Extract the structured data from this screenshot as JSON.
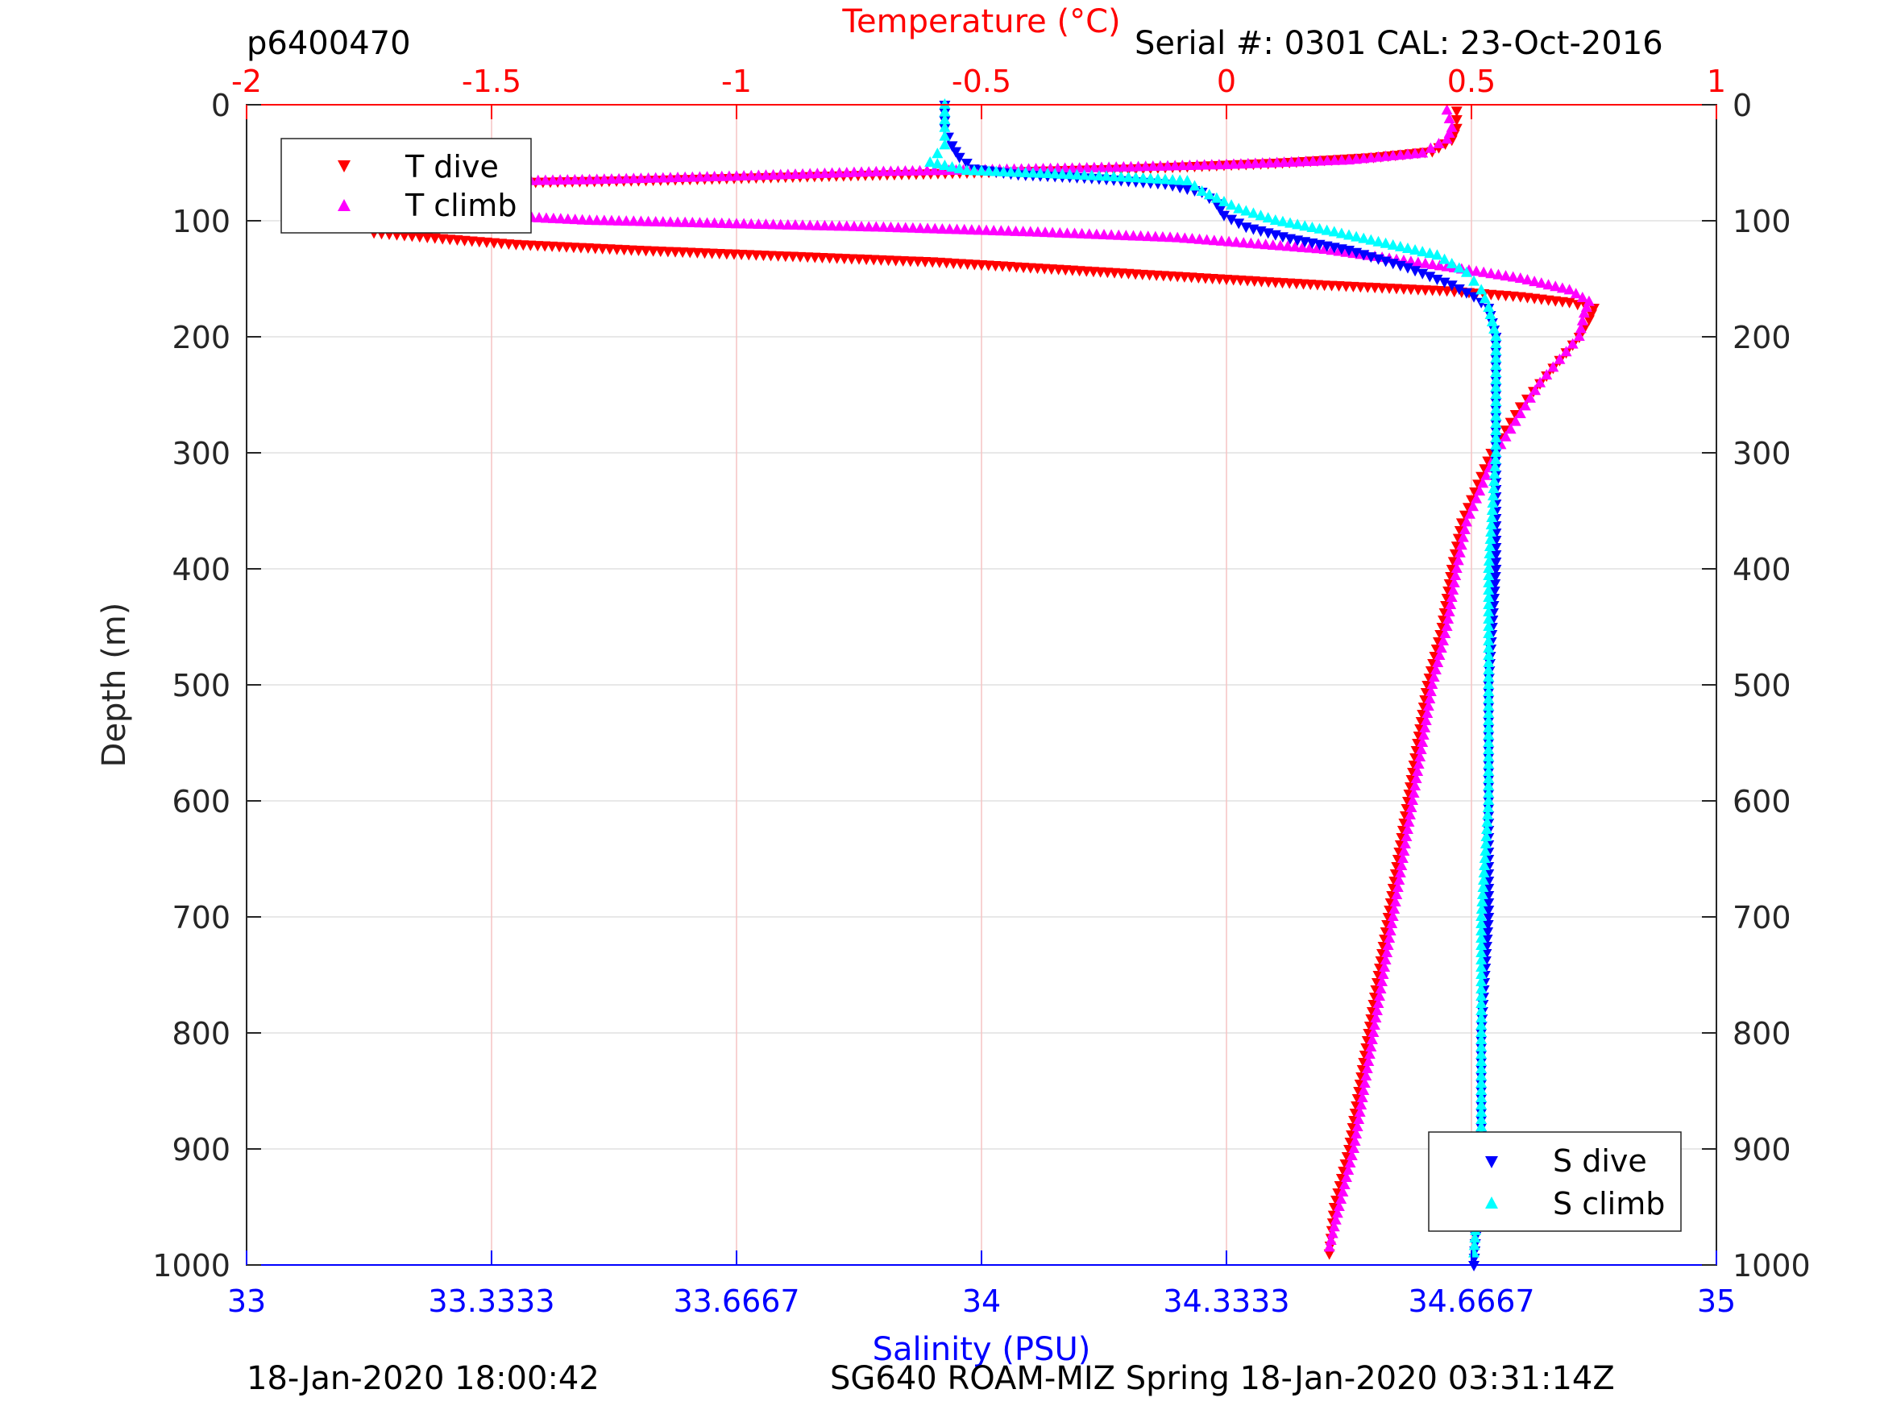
{
  "header": {
    "profile_id": "p6400470",
    "serial": "Serial #: 0301  CAL: 23-Oct-2016"
  },
  "footer": {
    "left": "18-Jan-2020 18:00:42",
    "right": "SG640 ROAM-MIZ Spring 18-Jan-2020 03:31:14Z"
  },
  "colors": {
    "t_dive": "#ff0000",
    "t_climb": "#ff00ff",
    "s_dive": "#0000ff",
    "s_climb": "#00ffff",
    "temp_axis": "#ff0000",
    "sal_axis": "#0000ff",
    "grid": "#e0e0e0"
  },
  "chart_data": {
    "type": "scatter",
    "ylabel": "Depth (m)",
    "ylim": [
      1000,
      0
    ],
    "y_ticks": [
      "0",
      "100",
      "200",
      "300",
      "400",
      "500",
      "600",
      "700",
      "800",
      "900",
      "1000"
    ],
    "top_axis": {
      "label": "Temperature (°C)",
      "lim": [
        -2,
        1
      ],
      "ticks": [
        "-2",
        "-1.5",
        "-1",
        "-0.5",
        "0",
        "0.5",
        "1"
      ]
    },
    "bottom_axis": {
      "label": "Salinity (PSU)",
      "lim": [
        33,
        35
      ],
      "ticks": [
        "33",
        "33.3333",
        "33.6667",
        "34",
        "34.3333",
        "34.6667",
        "35"
      ]
    },
    "grid": true,
    "legends": [
      {
        "placement": "top-left",
        "entries": [
          "T dive",
          "T climb"
        ]
      },
      {
        "placement": "bottom-right",
        "entries": [
          "S dive",
          "S climb"
        ]
      }
    ],
    "series": [
      {
        "name": "T dive",
        "axis": "temperature",
        "marker": "triangle-down",
        "points": [
          [
            0.47,
            5
          ],
          [
            0.47,
            20
          ],
          [
            0.46,
            30
          ],
          [
            0.42,
            40
          ],
          [
            0.3,
            45
          ],
          [
            0.1,
            50
          ],
          [
            -0.2,
            55
          ],
          [
            -0.5,
            58
          ],
          [
            -0.9,
            62
          ],
          [
            -1.2,
            65
          ],
          [
            -1.5,
            67
          ],
          [
            -1.7,
            70
          ],
          [
            -1.78,
            72
          ],
          [
            -1.79,
            80
          ],
          [
            -1.79,
            90
          ],
          [
            -1.77,
            100
          ],
          [
            -1.74,
            110
          ],
          [
            -1.6,
            115
          ],
          [
            -1.45,
            120
          ],
          [
            -1.2,
            125
          ],
          [
            -0.9,
            130
          ],
          [
            -0.6,
            135
          ],
          [
            -0.4,
            140
          ],
          [
            -0.2,
            145
          ],
          [
            0.0,
            150
          ],
          [
            0.2,
            155
          ],
          [
            0.45,
            160
          ],
          [
            0.6,
            165
          ],
          [
            0.7,
            170
          ],
          [
            0.75,
            175
          ],
          [
            0.74,
            185
          ],
          [
            0.72,
            200
          ],
          [
            0.68,
            220
          ],
          [
            0.64,
            240
          ],
          [
            0.6,
            260
          ],
          [
            0.57,
            280
          ],
          [
            0.54,
            300
          ],
          [
            0.52,
            320
          ],
          [
            0.5,
            340
          ],
          [
            0.48,
            360
          ],
          [
            0.46,
            400
          ],
          [
            0.44,
            450
          ],
          [
            0.41,
            500
          ],
          [
            0.39,
            550
          ],
          [
            0.37,
            600
          ],
          [
            0.35,
            650
          ],
          [
            0.33,
            700
          ],
          [
            0.31,
            750
          ],
          [
            0.29,
            800
          ],
          [
            0.27,
            850
          ],
          [
            0.25,
            900
          ],
          [
            0.22,
            950
          ],
          [
            0.21,
            990
          ]
        ]
      },
      {
        "name": "T climb",
        "axis": "temperature",
        "marker": "triangle-up",
        "points": [
          [
            0.45,
            5
          ],
          [
            0.46,
            20
          ],
          [
            0.45,
            30
          ],
          [
            0.4,
            42
          ],
          [
            0.25,
            48
          ],
          [
            0.0,
            52
          ],
          [
            -0.3,
            55
          ],
          [
            -0.7,
            58
          ],
          [
            -1.0,
            62
          ],
          [
            -1.3,
            65
          ],
          [
            -1.6,
            67
          ],
          [
            -1.75,
            70
          ],
          [
            -1.8,
            75
          ],
          [
            -1.8,
            85
          ],
          [
            -1.7,
            90
          ],
          [
            -1.55,
            95
          ],
          [
            -1.3,
            100
          ],
          [
            -1.0,
            103
          ],
          [
            -0.7,
            106
          ],
          [
            -0.4,
            110
          ],
          [
            -0.1,
            115
          ],
          [
            0.2,
            125
          ],
          [
            0.45,
            140
          ],
          [
            0.6,
            150
          ],
          [
            0.7,
            160
          ],
          [
            0.74,
            170
          ],
          [
            0.73,
            180
          ],
          [
            0.72,
            200
          ],
          [
            0.68,
            220
          ],
          [
            0.64,
            240
          ],
          [
            0.61,
            260
          ],
          [
            0.58,
            280
          ],
          [
            0.55,
            300
          ],
          [
            0.53,
            320
          ],
          [
            0.51,
            340
          ],
          [
            0.49,
            360
          ],
          [
            0.47,
            400
          ],
          [
            0.45,
            450
          ],
          [
            0.42,
            500
          ],
          [
            0.4,
            550
          ],
          [
            0.38,
            600
          ],
          [
            0.36,
            650
          ],
          [
            0.34,
            700
          ],
          [
            0.32,
            750
          ],
          [
            0.3,
            800
          ],
          [
            0.28,
            850
          ],
          [
            0.26,
            900
          ],
          [
            0.23,
            950
          ],
          [
            0.21,
            985
          ]
        ]
      },
      {
        "name": "S dive",
        "axis": "salinity",
        "marker": "triangle-down",
        "points": [
          [
            33.95,
            0
          ],
          [
            33.95,
            20
          ],
          [
            33.96,
            35
          ],
          [
            33.97,
            45
          ],
          [
            33.99,
            55
          ],
          [
            34.05,
            60
          ],
          [
            34.15,
            63
          ],
          [
            34.25,
            68
          ],
          [
            34.3,
            75
          ],
          [
            34.32,
            85
          ],
          [
            34.33,
            95
          ],
          [
            34.36,
            105
          ],
          [
            34.42,
            115
          ],
          [
            34.5,
            125
          ],
          [
            34.58,
            140
          ],
          [
            34.64,
            155
          ],
          [
            34.67,
            165
          ],
          [
            34.69,
            175
          ],
          [
            34.7,
            200
          ],
          [
            34.7,
            300
          ],
          [
            34.7,
            400
          ],
          [
            34.69,
            500
          ],
          [
            34.69,
            600
          ],
          [
            34.69,
            700
          ],
          [
            34.68,
            800
          ],
          [
            34.68,
            900
          ],
          [
            34.67,
            1000
          ]
        ]
      },
      {
        "name": "S climb",
        "axis": "salinity",
        "marker": "triangle-up",
        "points": [
          [
            33.95,
            0
          ],
          [
            33.95,
            20
          ],
          [
            33.95,
            35
          ],
          [
            33.93,
            50
          ],
          [
            33.98,
            57
          ],
          [
            34.1,
            60
          ],
          [
            34.2,
            63
          ],
          [
            34.28,
            66
          ],
          [
            34.3,
            75
          ],
          [
            34.35,
            90
          ],
          [
            34.4,
            100
          ],
          [
            34.48,
            110
          ],
          [
            34.55,
            120
          ],
          [
            34.62,
            130
          ],
          [
            34.66,
            145
          ],
          [
            34.68,
            160
          ],
          [
            34.69,
            175
          ],
          [
            34.7,
            200
          ],
          [
            34.7,
            300
          ],
          [
            34.69,
            400
          ],
          [
            34.69,
            500
          ],
          [
            34.69,
            600
          ],
          [
            34.68,
            700
          ],
          [
            34.68,
            800
          ],
          [
            34.68,
            900
          ],
          [
            34.67,
            990
          ]
        ]
      }
    ]
  }
}
